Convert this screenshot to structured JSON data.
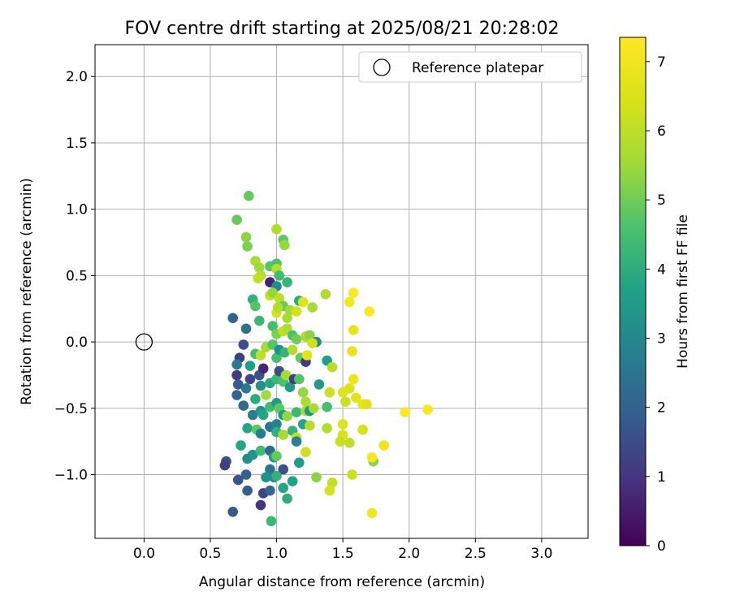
{
  "chart_data": {
    "type": "scatter",
    "title": "FOV centre drift starting at 2025/08/21 20:28:02",
    "xlabel": "Angular distance from reference (arcmin)",
    "ylabel": "Rotation from reference (arcmin)",
    "xlim": [
      -0.37,
      3.35
    ],
    "ylim": [
      -1.48,
      2.24
    ],
    "xticks": [
      0.0,
      0.5,
      1.0,
      1.5,
      2.0,
      2.5,
      3.0
    ],
    "yticks": [
      -1.0,
      -0.5,
      0.0,
      0.5,
      1.0,
      1.5,
      2.0
    ],
    "grid": true,
    "legend": {
      "placement": "top-right",
      "entries": [
        "Reference platepar"
      ]
    },
    "reference_point": {
      "x": 0.0,
      "y": 0.0,
      "label": "Reference platepar"
    },
    "colorbar": {
      "label": "Hours from first FF file",
      "range": [
        0,
        7.35
      ],
      "ticks": [
        0,
        1,
        2,
        3,
        4,
        5,
        6,
        7
      ],
      "colormap": "viridis"
    },
    "points": [
      {
        "x": 0.79,
        "y": 1.1,
        "t": 4.9
      },
      {
        "x": 0.7,
        "y": 0.92,
        "t": 4.9
      },
      {
        "x": 0.77,
        "y": 0.79,
        "t": 5.3
      },
      {
        "x": 0.78,
        "y": 0.72,
        "t": 5.1
      },
      {
        "x": 1.0,
        "y": 0.85,
        "t": 5.8
      },
      {
        "x": 1.05,
        "y": 0.77,
        "t": 4.8
      },
      {
        "x": 1.06,
        "y": 0.73,
        "t": 5.4
      },
      {
        "x": 0.84,
        "y": 0.61,
        "t": 5.7
      },
      {
        "x": 0.87,
        "y": 0.56,
        "t": 5.5
      },
      {
        "x": 0.88,
        "y": 0.5,
        "t": 5.8
      },
      {
        "x": 0.86,
        "y": 0.48,
        "t": 6.0
      },
      {
        "x": 0.95,
        "y": 0.57,
        "t": 4.7
      },
      {
        "x": 1.0,
        "y": 0.59,
        "t": 4.6
      },
      {
        "x": 1.0,
        "y": 0.55,
        "t": 5.9
      },
      {
        "x": 1.02,
        "y": 0.5,
        "t": 4.4
      },
      {
        "x": 1.08,
        "y": 0.45,
        "t": 4.2
      },
      {
        "x": 0.95,
        "y": 0.45,
        "t": 0.6
      },
      {
        "x": 1.0,
        "y": 0.42,
        "t": 3.0
      },
      {
        "x": 0.82,
        "y": 0.32,
        "t": 4.1
      },
      {
        "x": 0.84,
        "y": 0.27,
        "t": 4.7
      },
      {
        "x": 0.95,
        "y": 0.35,
        "t": 6.2
      },
      {
        "x": 0.97,
        "y": 0.37,
        "t": 5.4
      },
      {
        "x": 1.02,
        "y": 0.33,
        "t": 6.0
      },
      {
        "x": 1.05,
        "y": 0.27,
        "t": 4.9
      },
      {
        "x": 1.0,
        "y": 0.22,
        "t": 6.4
      },
      {
        "x": 1.01,
        "y": 0.26,
        "t": 5.8
      },
      {
        "x": 1.1,
        "y": 0.24,
        "t": 5.5
      },
      {
        "x": 1.08,
        "y": 0.18,
        "t": 5.6
      },
      {
        "x": 1.15,
        "y": 0.23,
        "t": 6.3
      },
      {
        "x": 1.17,
        "y": 0.31,
        "t": 4.0
      },
      {
        "x": 1.2,
        "y": 0.3,
        "t": 6.6
      },
      {
        "x": 1.27,
        "y": 0.26,
        "t": 5.6
      },
      {
        "x": 1.37,
        "y": 0.36,
        "t": 5.8
      },
      {
        "x": 1.58,
        "y": 0.37,
        "t": 7.35
      },
      {
        "x": 1.55,
        "y": 0.3,
        "t": 7.2
      },
      {
        "x": 1.7,
        "y": 0.23,
        "t": 7.3
      },
      {
        "x": 1.58,
        "y": 0.09,
        "t": 6.8
      },
      {
        "x": 0.67,
        "y": 0.18,
        "t": 2.1
      },
      {
        "x": 0.77,
        "y": 0.1,
        "t": 2.4
      },
      {
        "x": 0.87,
        "y": 0.16,
        "t": 4.3
      },
      {
        "x": 0.97,
        "y": 0.12,
        "t": 4.5
      },
      {
        "x": 1.0,
        "y": 0.06,
        "t": 5.1
      },
      {
        "x": 1.05,
        "y": 0.08,
        "t": 6.1
      },
      {
        "x": 1.08,
        "y": 0.1,
        "t": 5.8
      },
      {
        "x": 1.12,
        "y": 0.05,
        "t": 4.6
      },
      {
        "x": 1.15,
        "y": 0.02,
        "t": 5.0
      },
      {
        "x": 1.22,
        "y": 0.04,
        "t": 5.7
      },
      {
        "x": 1.25,
        "y": 0.05,
        "t": 5.3
      },
      {
        "x": 1.3,
        "y": 0.0,
        "t": 3.0
      },
      {
        "x": 1.27,
        "y": -0.01,
        "t": 6.3
      },
      {
        "x": 0.75,
        "y": -0.02,
        "t": 1.5
      },
      {
        "x": 0.72,
        "y": -0.12,
        "t": 1.2
      },
      {
        "x": 0.7,
        "y": -0.17,
        "t": 2.6
      },
      {
        "x": 0.8,
        "y": -0.18,
        "t": 3.6
      },
      {
        "x": 0.84,
        "y": -0.09,
        "t": 4.5
      },
      {
        "x": 0.88,
        "y": -0.1,
        "t": 6.0
      },
      {
        "x": 0.92,
        "y": -0.04,
        "t": 5.6
      },
      {
        "x": 0.97,
        "y": -0.02,
        "t": 4.7
      },
      {
        "x": 1.0,
        "y": -0.12,
        "t": 4.5
      },
      {
        "x": 1.02,
        "y": -0.06,
        "t": 3.2
      },
      {
        "x": 1.06,
        "y": -0.08,
        "t": 4.2
      },
      {
        "x": 1.12,
        "y": -0.06,
        "t": 5.8
      },
      {
        "x": 1.18,
        "y": -0.12,
        "t": 4.9
      },
      {
        "x": 1.22,
        "y": -0.15,
        "t": 1.1
      },
      {
        "x": 1.23,
        "y": -0.1,
        "t": 6.7
      },
      {
        "x": 1.38,
        "y": -0.14,
        "t": 3.6
      },
      {
        "x": 1.42,
        "y": -0.19,
        "t": 5.9
      },
      {
        "x": 1.57,
        "y": -0.07,
        "t": 6.8
      },
      {
        "x": 0.7,
        "y": -0.25,
        "t": 1.1
      },
      {
        "x": 0.71,
        "y": -0.32,
        "t": 1.8
      },
      {
        "x": 0.7,
        "y": -0.4,
        "t": 2.0
      },
      {
        "x": 0.77,
        "y": -0.35,
        "t": 2.6
      },
      {
        "x": 0.8,
        "y": -0.28,
        "t": 1.4
      },
      {
        "x": 0.84,
        "y": -0.43,
        "t": 4.0
      },
      {
        "x": 0.87,
        "y": -0.25,
        "t": 1.6
      },
      {
        "x": 0.88,
        "y": -0.33,
        "t": 3.3
      },
      {
        "x": 0.9,
        "y": -0.2,
        "t": 0.7
      },
      {
        "x": 0.92,
        "y": -0.4,
        "t": 5.5
      },
      {
        "x": 0.95,
        "y": -0.31,
        "t": 3.8
      },
      {
        "x": 1.0,
        "y": -0.28,
        "t": 4.3
      },
      {
        "x": 1.02,
        "y": -0.22,
        "t": 1.5
      },
      {
        "x": 1.05,
        "y": -0.3,
        "t": 4.6
      },
      {
        "x": 1.07,
        "y": -0.25,
        "t": 5.6
      },
      {
        "x": 1.1,
        "y": -0.34,
        "t": 3.5
      },
      {
        "x": 1.13,
        "y": -0.28,
        "t": 1.2
      },
      {
        "x": 1.17,
        "y": -0.28,
        "t": 4.7
      },
      {
        "x": 1.2,
        "y": -0.38,
        "t": 5.4
      },
      {
        "x": 1.22,
        "y": -0.45,
        "t": 5.7
      },
      {
        "x": 1.32,
        "y": -0.32,
        "t": 3.5
      },
      {
        "x": 1.4,
        "y": -0.38,
        "t": 6.2
      },
      {
        "x": 1.5,
        "y": -0.38,
        "t": 6.6
      },
      {
        "x": 1.55,
        "y": -0.35,
        "t": 6.5
      },
      {
        "x": 1.58,
        "y": -0.28,
        "t": 6.9
      },
      {
        "x": 1.52,
        "y": -0.45,
        "t": 6.2
      },
      {
        "x": 1.6,
        "y": -0.42,
        "t": 6.7
      },
      {
        "x": 1.65,
        "y": -0.47,
        "t": 6.8
      },
      {
        "x": 1.68,
        "y": -0.47,
        "t": 6.5
      },
      {
        "x": 1.97,
        "y": -0.53,
        "t": 7.3
      },
      {
        "x": 2.14,
        "y": -0.51,
        "t": 7.3
      },
      {
        "x": 0.75,
        "y": -0.48,
        "t": 2.2
      },
      {
        "x": 0.82,
        "y": -0.55,
        "t": 2.7
      },
      {
        "x": 0.88,
        "y": -0.52,
        "t": 3.4
      },
      {
        "x": 0.9,
        "y": -0.55,
        "t": 3.8
      },
      {
        "x": 0.95,
        "y": -0.49,
        "t": 4.4
      },
      {
        "x": 1.0,
        "y": -0.46,
        "t": 3.5
      },
      {
        "x": 1.02,
        "y": -0.5,
        "t": 4.8
      },
      {
        "x": 1.05,
        "y": -0.55,
        "t": 3.6
      },
      {
        "x": 1.08,
        "y": -0.56,
        "t": 5.4
      },
      {
        "x": 1.15,
        "y": -0.53,
        "t": 4.3
      },
      {
        "x": 1.22,
        "y": -0.52,
        "t": 5.6
      },
      {
        "x": 1.25,
        "y": -0.52,
        "t": 3.3
      },
      {
        "x": 1.28,
        "y": -0.5,
        "t": 5.6
      },
      {
        "x": 1.38,
        "y": -0.49,
        "t": 4.5
      },
      {
        "x": 0.78,
        "y": -0.65,
        "t": 3.8
      },
      {
        "x": 0.85,
        "y": -0.66,
        "t": 4.8
      },
      {
        "x": 0.88,
        "y": -0.69,
        "t": 2.7
      },
      {
        "x": 0.95,
        "y": -0.64,
        "t": 2.5
      },
      {
        "x": 1.0,
        "y": -0.62,
        "t": 2.9
      },
      {
        "x": 1.0,
        "y": -0.68,
        "t": 4.1
      },
      {
        "x": 1.05,
        "y": -0.7,
        "t": 5.6
      },
      {
        "x": 1.12,
        "y": -0.67,
        "t": 4.2
      },
      {
        "x": 1.15,
        "y": -0.72,
        "t": 6.0
      },
      {
        "x": 1.2,
        "y": -0.62,
        "t": 3.8
      },
      {
        "x": 1.25,
        "y": -0.63,
        "t": 5.9
      },
      {
        "x": 1.38,
        "y": -0.65,
        "t": 5.8
      },
      {
        "x": 1.5,
        "y": -0.62,
        "t": 6.6
      },
      {
        "x": 1.5,
        "y": -0.7,
        "t": 6.5
      },
      {
        "x": 1.48,
        "y": -0.75,
        "t": 6.2
      },
      {
        "x": 1.55,
        "y": -0.76,
        "t": 6.0
      },
      {
        "x": 1.65,
        "y": -0.66,
        "t": 6.4
      },
      {
        "x": 0.73,
        "y": -0.78,
        "t": 3.8
      },
      {
        "x": 0.82,
        "y": -0.85,
        "t": 3.3
      },
      {
        "x": 0.88,
        "y": -0.82,
        "t": 4.4
      },
      {
        "x": 0.95,
        "y": -0.82,
        "t": 2.2
      },
      {
        "x": 0.98,
        "y": -0.87,
        "t": 3.5
      },
      {
        "x": 1.0,
        "y": -0.86,
        "t": 4.9
      },
      {
        "x": 1.15,
        "y": -0.75,
        "t": 2.8
      },
      {
        "x": 1.22,
        "y": -0.83,
        "t": 6.2
      },
      {
        "x": 1.17,
        "y": -0.91,
        "t": 3.5
      },
      {
        "x": 0.62,
        "y": -0.9,
        "t": 1.5
      },
      {
        "x": 0.61,
        "y": -0.93,
        "t": 1.2
      },
      {
        "x": 0.78,
        "y": -0.88,
        "t": 3.2
      },
      {
        "x": 0.95,
        "y": -0.96,
        "t": 2.5
      },
      {
        "x": 0.98,
        "y": -1.02,
        "t": 3.0
      },
      {
        "x": 1.05,
        "y": -0.96,
        "t": 1.6
      },
      {
        "x": 0.71,
        "y": -1.04,
        "t": 1.7
      },
      {
        "x": 0.77,
        "y": -1.0,
        "t": 2.0
      },
      {
        "x": 0.92,
        "y": -1.02,
        "t": 3.3
      },
      {
        "x": 1.0,
        "y": -1.01,
        "t": 4.1
      },
      {
        "x": 1.12,
        "y": -1.05,
        "t": 3.7
      },
      {
        "x": 1.3,
        "y": -1.02,
        "t": 5.3
      },
      {
        "x": 1.42,
        "y": -1.06,
        "t": 6.1
      },
      {
        "x": 1.4,
        "y": -1.12,
        "t": 6.4
      },
      {
        "x": 1.57,
        "y": -1.0,
        "t": 6.2
      },
      {
        "x": 1.73,
        "y": -0.9,
        "t": 5.3
      },
      {
        "x": 1.72,
        "y": -0.87,
        "t": 7.2
      },
      {
        "x": 1.81,
        "y": -0.78,
        "t": 7.0
      },
      {
        "x": 0.78,
        "y": -1.12,
        "t": 1.9
      },
      {
        "x": 0.9,
        "y": -1.14,
        "t": 1.3
      },
      {
        "x": 0.95,
        "y": -1.12,
        "t": 2.1
      },
      {
        "x": 1.05,
        "y": -1.1,
        "t": 3.8
      },
      {
        "x": 1.08,
        "y": -1.18,
        "t": 4.0
      },
      {
        "x": 0.67,
        "y": -1.28,
        "t": 1.8
      },
      {
        "x": 0.88,
        "y": -1.23,
        "t": 1.0
      },
      {
        "x": 0.96,
        "y": -1.35,
        "t": 4.3
      },
      {
        "x": 1.72,
        "y": -1.29,
        "t": 7.0
      }
    ]
  }
}
